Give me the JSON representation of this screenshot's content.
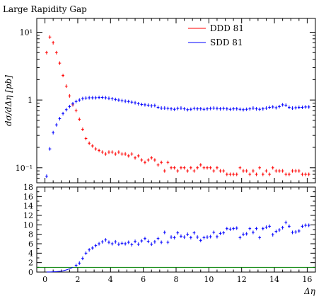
{
  "chart_data": [
    {
      "type": "scatter",
      "panel": "main",
      "title": "Large Rapidity Gap",
      "xlabel": "",
      "ylabel": "dσ/dΔη [pb]",
      "yscale": "log",
      "ylim": [
        0.06,
        16
      ],
      "xlim": [
        -0.5,
        16.5
      ],
      "y_ticks": [
        {
          "value": 0.1,
          "label": "10⁻¹"
        },
        {
          "value": 1,
          "label": "1"
        },
        {
          "value": 10,
          "label": "10¹"
        }
      ],
      "legend_position": "top-right",
      "series": [
        {
          "name": "DDD 81",
          "color": "#ff0000",
          "x": [
            0.1,
            0.3,
            0.5,
            0.7,
            0.9,
            1.1,
            1.3,
            1.5,
            1.7,
            1.9,
            2.1,
            2.3,
            2.5,
            2.7,
            2.9,
            3.1,
            3.3,
            3.5,
            3.7,
            3.9,
            4.1,
            4.3,
            4.5,
            4.7,
            4.9,
            5.1,
            5.3,
            5.5,
            5.7,
            5.9,
            6.1,
            6.3,
            6.5,
            6.7,
            6.9,
            7.1,
            7.3,
            7.5,
            7.7,
            7.9,
            8.1,
            8.3,
            8.5,
            8.7,
            8.9,
            9.1,
            9.3,
            9.5,
            9.7,
            9.9,
            10.1,
            10.3,
            10.5,
            10.7,
            10.9,
            11.1,
            11.3,
            11.5,
            11.7,
            11.9,
            12.1,
            12.3,
            12.5,
            12.7,
            12.9,
            13.1,
            13.3,
            13.5,
            13.7,
            13.9,
            14.1,
            14.3,
            14.5,
            14.7,
            14.9,
            15.1,
            15.3,
            15.5,
            15.7,
            15.9,
            16.1
          ],
          "y": [
            5.0,
            8.5,
            7.0,
            5.0,
            3.5,
            2.3,
            1.6,
            1.15,
            0.85,
            0.7,
            0.52,
            0.37,
            0.27,
            0.23,
            0.21,
            0.19,
            0.18,
            0.17,
            0.16,
            0.17,
            0.17,
            0.16,
            0.17,
            0.16,
            0.16,
            0.15,
            0.16,
            0.14,
            0.15,
            0.13,
            0.12,
            0.13,
            0.14,
            0.13,
            0.11,
            0.12,
            0.09,
            0.12,
            0.1,
            0.1,
            0.09,
            0.1,
            0.1,
            0.09,
            0.1,
            0.09,
            0.1,
            0.11,
            0.1,
            0.1,
            0.1,
            0.09,
            0.1,
            0.09,
            0.09,
            0.08,
            0.08,
            0.08,
            0.08,
            0.1,
            0.09,
            0.09,
            0.08,
            0.09,
            0.08,
            0.1,
            0.08,
            0.09,
            0.08,
            0.1,
            0.09,
            0.09,
            0.09,
            0.08,
            0.08,
            0.09,
            0.09,
            0.09,
            0.08,
            0.08,
            0.08
          ]
        },
        {
          "name": "SDD 81",
          "color": "#0000ff",
          "x": [
            0.1,
            0.3,
            0.5,
            0.7,
            0.9,
            1.1,
            1.3,
            1.5,
            1.7,
            1.9,
            2.1,
            2.3,
            2.5,
            2.7,
            2.9,
            3.1,
            3.3,
            3.5,
            3.7,
            3.9,
            4.1,
            4.3,
            4.5,
            4.7,
            4.9,
            5.1,
            5.3,
            5.5,
            5.7,
            5.9,
            6.1,
            6.3,
            6.5,
            6.7,
            6.9,
            7.1,
            7.3,
            7.5,
            7.7,
            7.9,
            8.1,
            8.3,
            8.5,
            8.7,
            8.9,
            9.1,
            9.3,
            9.5,
            9.7,
            9.9,
            10.1,
            10.3,
            10.5,
            10.7,
            10.9,
            11.1,
            11.3,
            11.5,
            11.7,
            11.9,
            12.1,
            12.3,
            12.5,
            12.7,
            12.9,
            13.1,
            13.3,
            13.5,
            13.7,
            13.9,
            14.1,
            14.3,
            14.5,
            14.7,
            14.9,
            15.1,
            15.3,
            15.5,
            15.7,
            15.9,
            16.1
          ],
          "y": [
            0.075,
            0.19,
            0.33,
            0.43,
            0.53,
            0.63,
            0.72,
            0.8,
            0.88,
            0.95,
            1.0,
            1.05,
            1.07,
            1.08,
            1.08,
            1.08,
            1.09,
            1.09,
            1.08,
            1.06,
            1.04,
            1.02,
            1.0,
            0.98,
            0.96,
            0.95,
            0.93,
            0.91,
            0.88,
            0.86,
            0.85,
            0.84,
            0.82,
            0.83,
            0.78,
            0.76,
            0.76,
            0.75,
            0.74,
            0.73,
            0.75,
            0.76,
            0.74,
            0.72,
            0.73,
            0.75,
            0.74,
            0.74,
            0.73,
            0.74,
            0.75,
            0.76,
            0.75,
            0.74,
            0.75,
            0.74,
            0.73,
            0.74,
            0.74,
            0.73,
            0.72,
            0.73,
            0.74,
            0.76,
            0.74,
            0.73,
            0.74,
            0.76,
            0.78,
            0.79,
            0.77,
            0.8,
            0.85,
            0.84,
            0.78,
            0.76,
            0.77,
            0.78,
            0.78,
            0.79,
            0.79
          ]
        }
      ]
    },
    {
      "type": "scatter",
      "panel": "ratio",
      "xlabel": "Δη",
      "ylabel": "",
      "ylim": [
        0,
        18
      ],
      "xlim": [
        -0.5,
        16.5
      ],
      "y_ticks": [
        0,
        2,
        4,
        6,
        8,
        10,
        12,
        14,
        16,
        18
      ],
      "x_ticks": [
        0,
        2,
        4,
        6,
        8,
        10,
        12,
        14,
        16
      ],
      "reference_line": {
        "y": 1,
        "color": "#008000"
      },
      "series": [
        {
          "color": "#0000ff",
          "x": [
            0.1,
            0.3,
            0.5,
            0.7,
            0.9,
            1.1,
            1.3,
            1.5,
            1.7,
            1.9,
            2.1,
            2.3,
            2.5,
            2.7,
            2.9,
            3.1,
            3.3,
            3.5,
            3.7,
            3.9,
            4.1,
            4.3,
            4.5,
            4.7,
            4.9,
            5.1,
            5.3,
            5.5,
            5.7,
            5.9,
            6.1,
            6.3,
            6.5,
            6.7,
            6.9,
            7.1,
            7.3,
            7.5,
            7.7,
            7.9,
            8.1,
            8.3,
            8.5,
            8.7,
            8.9,
            9.1,
            9.3,
            9.5,
            9.7,
            9.9,
            10.1,
            10.3,
            10.5,
            10.7,
            10.9,
            11.1,
            11.3,
            11.5,
            11.7,
            11.9,
            12.1,
            12.3,
            12.5,
            12.7,
            12.9,
            13.1,
            13.3,
            13.5,
            13.7,
            13.9,
            14.1,
            14.3,
            14.5,
            14.7,
            14.9,
            15.1,
            15.3,
            15.5,
            15.7,
            15.9,
            16.1
          ],
          "y": [
            0.01,
            0.02,
            0.05,
            0.09,
            0.15,
            0.27,
            0.45,
            0.7,
            1.0,
            1.4,
            1.9,
            2.9,
            4.0,
            4.7,
            5.1,
            5.6,
            6.0,
            6.4,
            6.8,
            6.3,
            6.0,
            6.4,
            5.9,
            6.1,
            6.0,
            6.3,
            5.8,
            6.5,
            5.9,
            6.6,
            7.1,
            6.5,
            5.9,
            6.4,
            7.1,
            6.3,
            8.4,
            6.3,
            7.4,
            7.3,
            8.3,
            7.6,
            7.4,
            8.0,
            7.3,
            8.3,
            7.4,
            6.7,
            7.3,
            7.4,
            7.5,
            8.4,
            7.5,
            8.2,
            8.3,
            9.2,
            9.1,
            9.2,
            9.3,
            7.3,
            8.0,
            8.1,
            9.2,
            8.4,
            9.2,
            7.3,
            9.2,
            9.5,
            9.7,
            7.9,
            8.6,
            8.9,
            9.4,
            10.5,
            9.7,
            8.4,
            8.5,
            8.7,
            9.7,
            9.9,
            9.9
          ]
        }
      ]
    }
  ]
}
